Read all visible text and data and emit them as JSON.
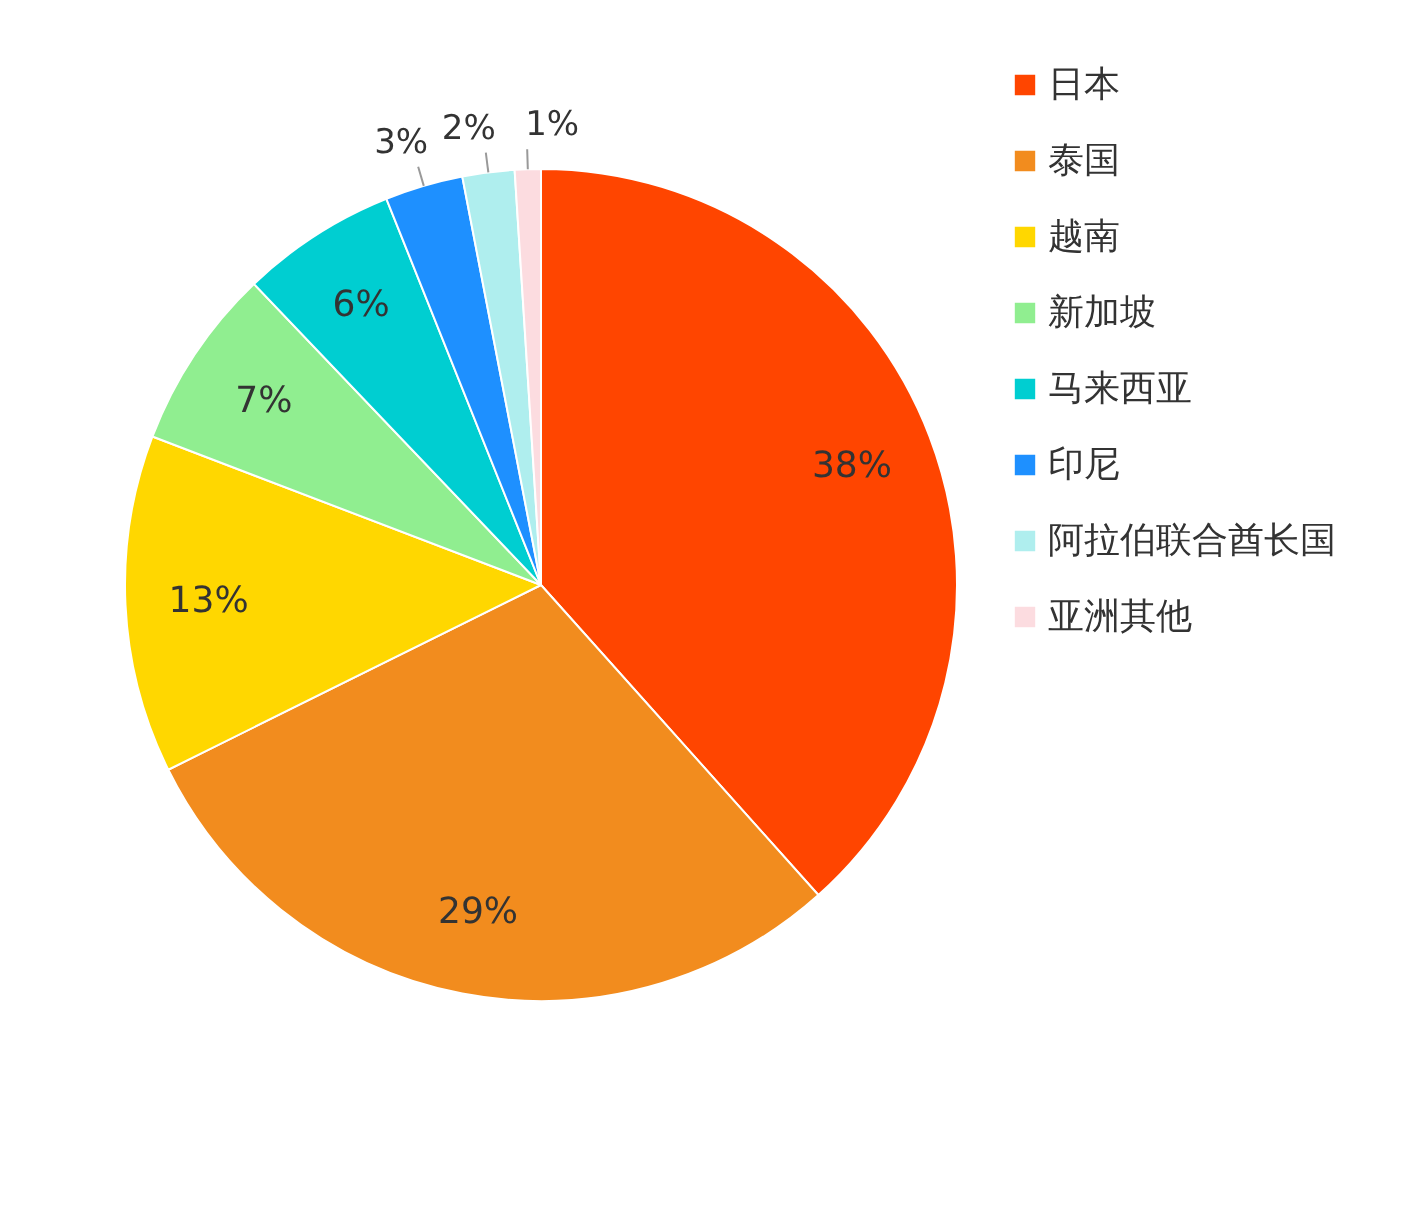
{
  "chart_data": {
    "type": "pie",
    "categories": [
      "日本",
      "泰国",
      "越南",
      "新加坡",
      "马来西亚",
      "印尼",
      "阿拉伯联合酋长国",
      "亚洲其他"
    ],
    "values": [
      38,
      29,
      13,
      7,
      6,
      3,
      2,
      1
    ],
    "colors": [
      "#ff4500",
      "#f28c1e",
      "#ffd700",
      "#90ee90",
      "#00ced1",
      "#1e90ff",
      "#afeeee",
      "#fcdce0"
    ],
    "value_labels": [
      "38%",
      "29%",
      "13%",
      "7%",
      "6%",
      "3%",
      "2%",
      "1%"
    ],
    "legend": "top right"
  }
}
